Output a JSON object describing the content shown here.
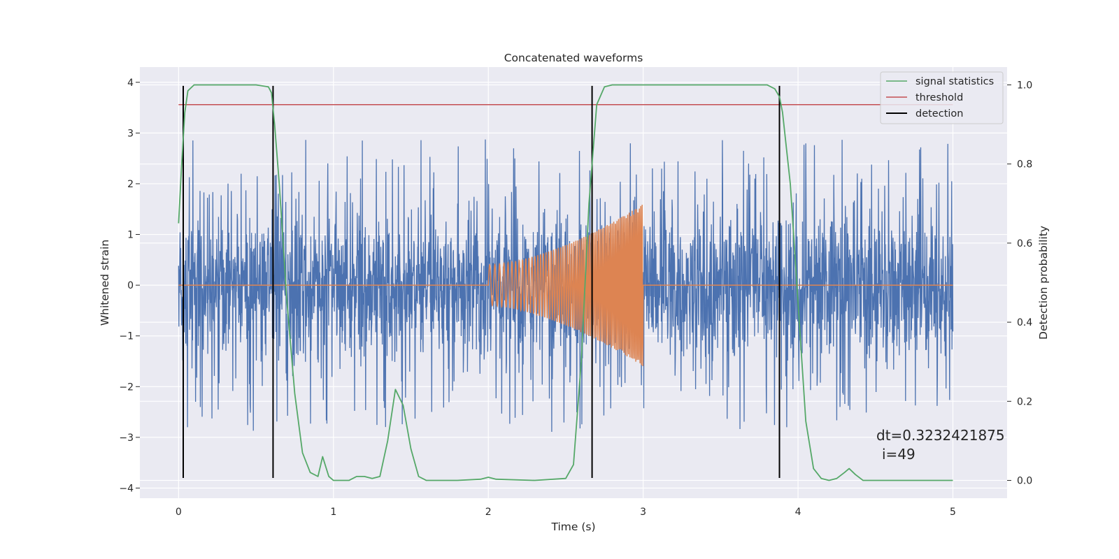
{
  "chart_data": {
    "type": "line",
    "title": "Concatenated waveforms",
    "xlabel": "Time (s)",
    "ylabel": "Whitened strain",
    "ylabel_right": "Detection probability",
    "xlim": [
      -0.25,
      5.35
    ],
    "ylim": [
      -4.2,
      4.3
    ],
    "ylim_right": [
      -0.045,
      1.045
    ],
    "x_ticks": [
      0,
      1,
      2,
      3,
      4,
      5
    ],
    "x_tick_labels": [
      "0",
      "1",
      "2",
      "3",
      "4",
      "5"
    ],
    "y_ticks": [
      4,
      3,
      2,
      1,
      0,
      -1,
      -2,
      -3,
      -4
    ],
    "y_tick_labels": [
      "4",
      "3",
      "2",
      "1",
      "0",
      "−1",
      "−2",
      "−3",
      "−4"
    ],
    "y_ticks_right": [
      1.0,
      0.8,
      0.6,
      0.4,
      0.2,
      0.0
    ],
    "y_tick_labels_right": [
      "1.0",
      "0.8",
      "0.6",
      "0.4",
      "0.2",
      "0.0"
    ],
    "grid": true,
    "legend": {
      "placement": "top-right",
      "entries": [
        {
          "label": "signal statistics",
          "color": "#55a868"
        },
        {
          "label": "threshold",
          "color": "#c44e52"
        },
        {
          "label": "detection",
          "color": "#000000"
        }
      ]
    },
    "colors": {
      "noise": "#4c72b0",
      "chirp": "#dd8452",
      "statistic": "#55a868",
      "threshold": "#c44e52",
      "detection": "#000000",
      "background": "#eaeaf2"
    },
    "series": [
      {
        "name": "signal statistics",
        "axis": "right",
        "x": [
          0.0,
          0.02,
          0.04,
          0.06,
          0.1,
          0.2,
          0.5,
          0.58,
          0.6,
          0.62,
          0.65,
          0.7,
          0.75,
          0.8,
          0.85,
          0.9,
          0.93,
          0.97,
          1.0,
          1.05,
          1.1,
          1.15,
          1.2,
          1.25,
          1.3,
          1.35,
          1.4,
          1.45,
          1.5,
          1.55,
          1.6,
          1.8,
          1.95,
          2.0,
          2.05,
          2.3,
          2.5,
          2.55,
          2.6,
          2.65,
          2.7,
          2.75,
          2.8,
          3.0,
          3.8,
          3.85,
          3.88,
          3.9,
          3.95,
          4.0,
          4.05,
          4.1,
          4.15,
          4.2,
          4.25,
          4.3,
          4.33,
          4.37,
          4.42,
          4.5,
          5.0
        ],
        "y": [
          0.65,
          0.8,
          0.93,
          0.985,
          1.0,
          1.0,
          1.0,
          0.995,
          0.98,
          0.9,
          0.75,
          0.45,
          0.22,
          0.07,
          0.02,
          0.01,
          0.06,
          0.01,
          0.0,
          0.0,
          0.0,
          0.01,
          0.01,
          0.005,
          0.01,
          0.1,
          0.23,
          0.19,
          0.08,
          0.01,
          0.0,
          0.0,
          0.003,
          0.008,
          0.003,
          0.0,
          0.005,
          0.04,
          0.3,
          0.7,
          0.95,
          0.995,
          1.0,
          1.0,
          1.0,
          0.99,
          0.97,
          0.93,
          0.75,
          0.45,
          0.15,
          0.03,
          0.005,
          0.0,
          0.005,
          0.02,
          0.03,
          0.015,
          0.0,
          0.0,
          0.0
        ]
      },
      {
        "name": "threshold",
        "axis": "right",
        "x": [
          0,
          5
        ],
        "y": [
          0.95,
          0.95
        ]
      },
      {
        "name": "detection",
        "axis": "left",
        "x": [
          0.03,
          0.61,
          2.67,
          3.88
        ],
        "y_range": [
          -3.8,
          3.93
        ]
      }
    ],
    "noise": {
      "axis": "left",
      "x_range": [
        0,
        5
      ],
      "dense_band": [
        -0.7,
        0.8
      ],
      "typical_peak_range": [
        -2.5,
        2.6
      ]
    },
    "chirp": {
      "axis": "left",
      "x_start": 2.0,
      "x_end": 3.0,
      "amplitude_start": 0.4,
      "amplitude_end": 1.6
    }
  },
  "annotation": {
    "line1": "dt=0.3232421875",
    "line2": "i=49"
  }
}
